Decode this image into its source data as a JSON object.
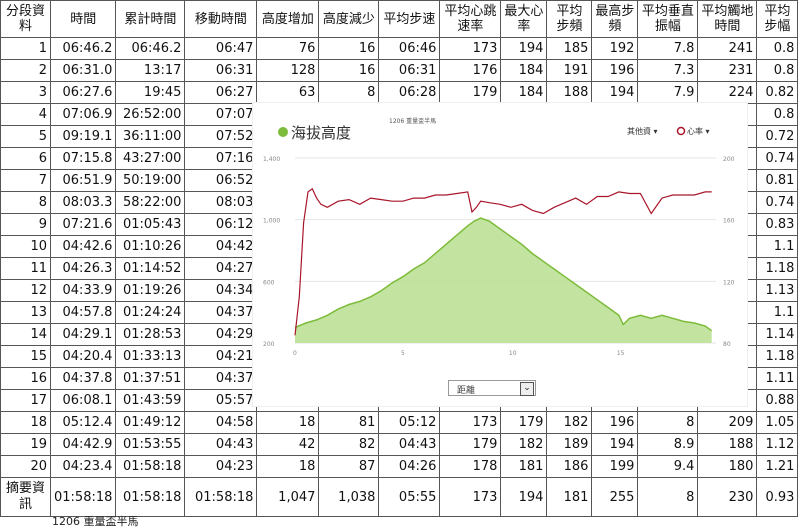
{
  "table": {
    "headers": [
      "分段資料",
      "時間",
      "累計時間",
      "移動時間",
      "高度增加",
      "高度減少",
      "平均步速",
      "平均心跳速率",
      "最大心率",
      "平均步頻",
      "最高步頻",
      "平均垂直振幅",
      "平均觸地時間",
      "平均步幅"
    ],
    "rows": [
      [
        "1",
        "06:46.2",
        "06:46.2",
        "06:47",
        "76",
        "16",
        "06:46",
        "173",
        "194",
        "185",
        "192",
        "7.8",
        "241",
        "0.8"
      ],
      [
        "2",
        "06:31.0",
        "13:17",
        "06:31",
        "128",
        "16",
        "06:31",
        "176",
        "184",
        "191",
        "196",
        "7.3",
        "231",
        "0.8"
      ],
      [
        "3",
        "06:27.6",
        "19:45",
        "06:27",
        "63",
        "8",
        "06:28",
        "179",
        "184",
        "188",
        "194",
        "7.9",
        "224",
        "0.82"
      ],
      [
        "4",
        "07:06.9",
        "26:52:00",
        "07:07",
        "",
        "",
        "",
        "",
        "",
        "",
        "",
        "",
        "",
        "0.8"
      ],
      [
        "5",
        "09:19.1",
        "36:11:00",
        "07:52",
        "",
        "",
        "",
        "",
        "",
        "",
        "",
        "",
        "",
        "0.72"
      ],
      [
        "6",
        "07:15.8",
        "43:27:00",
        "07:16",
        "",
        "",
        "",
        "",
        "",
        "",
        "",
        "",
        "",
        "0.74"
      ],
      [
        "7",
        "06:51.9",
        "50:19:00",
        "06:52",
        "",
        "",
        "",
        "",
        "",
        "",
        "",
        "",
        "",
        "0.81"
      ],
      [
        "8",
        "08:03.3",
        "58:22:00",
        "08:03",
        "",
        "",
        "",
        "",
        "",
        "",
        "",
        "",
        "",
        "0.74"
      ],
      [
        "9",
        "07:21.6",
        "01:05:43",
        "06:12",
        "",
        "",
        "",
        "",
        "",
        "",
        "",
        "",
        "",
        "0.83"
      ],
      [
        "10",
        "04:42.6",
        "01:10:26",
        "04:42",
        "",
        "",
        "",
        "",
        "",
        "",
        "",
        "",
        "",
        "1.1"
      ],
      [
        "11",
        "04:26.3",
        "01:14:52",
        "04:27",
        "",
        "",
        "",
        "",
        "",
        "",
        "",
        "",
        "",
        "1.18"
      ],
      [
        "12",
        "04:33.9",
        "01:19:26",
        "04:34",
        "",
        "",
        "",
        "",
        "",
        "",
        "",
        "",
        "",
        "1.13"
      ],
      [
        "13",
        "04:57.8",
        "01:24:24",
        "04:37",
        "",
        "",
        "",
        "",
        "",
        "",
        "",
        "",
        "",
        "1.1"
      ],
      [
        "14",
        "04:29.1",
        "01:28:53",
        "04:29",
        "",
        "",
        "",
        "",
        "",
        "",
        "",
        "",
        "",
        "1.14"
      ],
      [
        "15",
        "04:20.4",
        "01:33:13",
        "04:21",
        "",
        "",
        "",
        "",
        "",
        "",
        "",
        "",
        "",
        "1.18"
      ],
      [
        "16",
        "04:37.8",
        "01:37:51",
        "04:37",
        "",
        "",
        "",
        "",
        "",
        "",
        "",
        "",
        "",
        "1.11"
      ],
      [
        "17",
        "06:08.1",
        "01:43:59",
        "05:57",
        "",
        "",
        "",
        "",
        "",
        "",
        "",
        "",
        "",
        "0.88"
      ],
      [
        "18",
        "05:12.4",
        "01:49:12",
        "04:58",
        "18",
        "81",
        "05:12",
        "173",
        "179",
        "182",
        "196",
        "8",
        "209",
        "1.05"
      ],
      [
        "19",
        "04:42.9",
        "01:53:55",
        "04:43",
        "42",
        "82",
        "04:43",
        "179",
        "182",
        "189",
        "194",
        "8.9",
        "188",
        "1.12"
      ],
      [
        "20",
        "04:23.4",
        "01:58:18",
        "04:23",
        "18",
        "87",
        "04:26",
        "178",
        "181",
        "186",
        "199",
        "9.4",
        "180",
        "1.21"
      ]
    ],
    "summary": [
      "摘要資訊",
      "01:58:18",
      "01:58:18",
      "01:58:18",
      "1,047",
      "1,038",
      "05:55",
      "173",
      "194",
      "181",
      "255",
      "8",
      "230",
      "0.93"
    ]
  },
  "caption": "1206 重量盃半馬",
  "chart_data": {
    "type": "line",
    "title": "1206 重量盃半馬",
    "legend": {
      "left": "海拔高度",
      "right": [
        "其他資",
        "心率"
      ]
    },
    "x_ticks": [
      "0",
      "5",
      "10",
      "15"
    ],
    "xlim": [
      0,
      19.5
    ],
    "y_left_ticks": [
      "1,400",
      "1,000",
      "600",
      "200"
    ],
    "y_left_lim": [
      200,
      1400
    ],
    "y_right_ticks": [
      "200",
      "160",
      "120",
      "80"
    ],
    "y_right_lim": [
      80,
      200
    ],
    "series": [
      {
        "name": "海拔高度",
        "color": "#7dbb3a",
        "axis": "left",
        "area": true,
        "x": [
          0,
          0.5,
          1,
          1.5,
          2,
          2.5,
          3,
          3.5,
          4,
          4.5,
          5,
          5.5,
          6,
          6.5,
          7,
          7.5,
          8,
          8.3,
          8.6,
          9,
          9.5,
          10,
          10.5,
          11,
          11.5,
          12,
          12.5,
          13,
          13.5,
          14,
          14.5,
          15,
          15.2,
          15.5,
          16,
          16.5,
          17,
          17.5,
          18,
          18.5,
          19,
          19.3
        ],
        "y": [
          300,
          330,
          350,
          380,
          420,
          450,
          470,
          500,
          540,
          590,
          630,
          680,
          720,
          780,
          840,
          900,
          960,
          990,
          1010,
          990,
          940,
          890,
          840,
          780,
          730,
          680,
          630,
          580,
          530,
          480,
          430,
          380,
          320,
          360,
          380,
          360,
          380,
          360,
          340,
          330,
          310,
          280
        ]
      },
      {
        "name": "心率",
        "color": "#a8162a",
        "axis": "right",
        "x": [
          0,
          0.2,
          0.4,
          0.6,
          0.8,
          1,
          1.2,
          1.5,
          2,
          2.5,
          3,
          3.5,
          4,
          4.5,
          5,
          5.5,
          6,
          6.5,
          7,
          7.5,
          8,
          8.2,
          8.4,
          8.6,
          9,
          9.5,
          10,
          10.5,
          11,
          11.5,
          12,
          12.5,
          13,
          13.5,
          14,
          14.5,
          15,
          15.5,
          16,
          16.5,
          17,
          17.5,
          18,
          18.5,
          19,
          19.3
        ],
        "y": [
          85,
          110,
          158,
          178,
          180,
          174,
          170,
          168,
          172,
          173,
          170,
          174,
          173,
          172,
          172,
          174,
          174,
          176,
          176,
          177,
          178,
          165,
          168,
          172,
          171,
          170,
          168,
          170,
          166,
          164,
          168,
          171,
          174,
          170,
          175,
          175,
          178,
          177,
          177,
          164,
          174,
          176,
          176,
          176,
          178,
          178
        ]
      }
    ]
  },
  "selector": {
    "value": "距離"
  }
}
